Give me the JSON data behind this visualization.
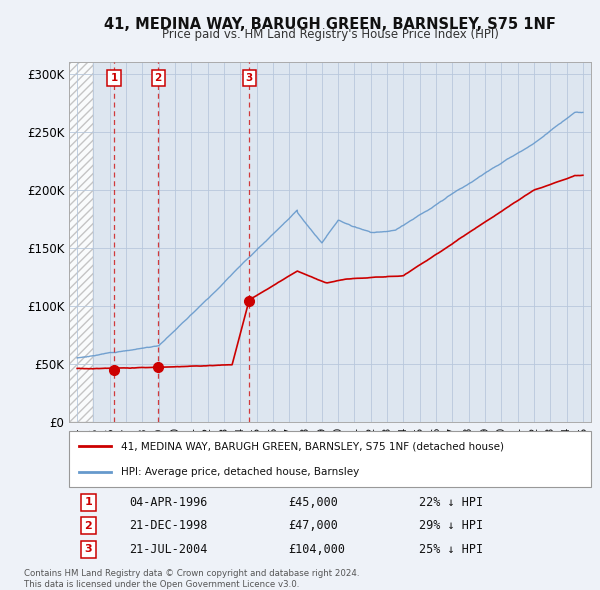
{
  "title": "41, MEDINA WAY, BARUGH GREEN, BARNSLEY, S75 1NF",
  "subtitle": "Price paid vs. HM Land Registry's House Price Index (HPI)",
  "legend_entry1": "41, MEDINA WAY, BARUGH GREEN, BARNSLEY, S75 1NF (detached house)",
  "legend_entry2": "HPI: Average price, detached house, Barnsley",
  "transactions": [
    {
      "num": 1,
      "date": "04-APR-1996",
      "price": 45000,
      "hpi_pct": "22% ↓ HPI",
      "year": 1996.26
    },
    {
      "num": 2,
      "date": "21-DEC-1998",
      "price": 47000,
      "hpi_pct": "29% ↓ HPI",
      "year": 1998.97
    },
    {
      "num": 3,
      "date": "21-JUL-2004",
      "price": 104000,
      "hpi_pct": "25% ↓ HPI",
      "year": 2004.55
    }
  ],
  "footer": "Contains HM Land Registry data © Crown copyright and database right 2024.\nThis data is licensed under the Open Government Licence v3.0.",
  "xlim": [
    1993.5,
    2025.5
  ],
  "ylim": [
    0,
    310000
  ],
  "yticks": [
    0,
    50000,
    100000,
    150000,
    200000,
    250000,
    300000
  ],
  "ytick_labels": [
    "£0",
    "£50K",
    "£100K",
    "£150K",
    "£200K",
    "£250K",
    "£300K"
  ],
  "hatch_end_year": 1995.0,
  "background_color": "#eef2f8",
  "plot_bg_color": "#dde6f0",
  "grid_color": "#b8c8dc",
  "red_line_color": "#cc0000",
  "blue_line_color": "#6699cc"
}
